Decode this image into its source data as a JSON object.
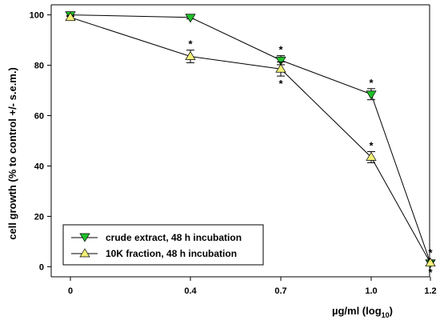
{
  "chart_data": {
    "type": "line",
    "xlabel_main": "µg/ml (log",
    "xlabel_sub": "10",
    "xlabel_close": ")",
    "ylabel": "cell growth (% to control +/- s.e.m.)",
    "x": [
      0,
      0.4,
      0.7,
      1.0,
      1.2
    ],
    "x_tick_labels": [
      "0",
      "0.4",
      "0.7",
      "1.0",
      "1.2"
    ],
    "y_ticks": [
      0,
      20,
      40,
      60,
      80,
      100
    ],
    "y_tick_labels": [
      "0",
      "20",
      "40",
      "60",
      "80",
      "100"
    ],
    "ylim": [
      -4,
      104
    ],
    "grid": false,
    "legend_position": "bottom-left",
    "series": [
      {
        "name": "crude extract, 48 h incubation",
        "marker": "triangle-down",
        "color": "#1fbf2a",
        "values": [
          100,
          99,
          82,
          68.5,
          1.5
        ],
        "errors": [
          0.6,
          0.6,
          1.8,
          2.2,
          0.8
        ],
        "significance": [
          "",
          "",
          "*",
          "*",
          "*"
        ]
      },
      {
        "name": "10K fraction, 48 h incubation",
        "marker": "triangle-up",
        "color": "#f2ef78",
        "values": [
          99,
          83.5,
          78.5,
          43.5,
          1.5
        ],
        "errors": [
          0.8,
          2.5,
          2.8,
          2.2,
          0.8
        ],
        "significance": [
          "",
          "*",
          "*",
          "*",
          "*"
        ]
      }
    ]
  }
}
